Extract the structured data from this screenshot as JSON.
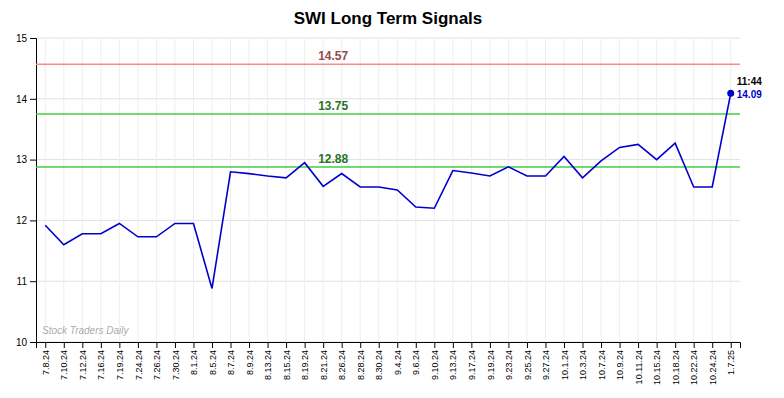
{
  "chart_data": {
    "type": "line",
    "title": "SWI Long Term Signals",
    "categories": [
      "7.8.24",
      "7.10.24",
      "7.12.24",
      "7.16.24",
      "7.19.24",
      "7.24.24",
      "7.26.24",
      "7.30.24",
      "8.1.24",
      "8.5.24",
      "8.7.24",
      "8.9.24",
      "8.13.24",
      "8.15.24",
      "8.19.24",
      "8.21.24",
      "8.26.24",
      "8.28.24",
      "8.30.24",
      "9.4.24",
      "9.6.24",
      "9.10.24",
      "9.13.24",
      "9.17.24",
      "9.19.24",
      "9.23.24",
      "9.25.24",
      "9.27.24",
      "10.1.24",
      "10.3.24",
      "10.7.24",
      "10.9.24",
      "10.11.24",
      "10.15.24",
      "10.18.24",
      "10.22.24",
      "10.24.24",
      "1.7.25"
    ],
    "values": [
      11.92,
      11.6,
      11.78,
      11.78,
      11.95,
      11.73,
      11.73,
      11.95,
      11.95,
      10.88,
      12.8,
      12.77,
      12.73,
      12.7,
      12.95,
      12.56,
      12.77,
      12.55,
      12.55,
      12.5,
      12.22,
      12.2,
      12.82,
      12.78,
      12.73,
      12.88,
      12.73,
      12.73,
      13.05,
      12.7,
      12.98,
      13.2,
      13.25,
      13.0,
      13.27,
      12.55,
      12.55,
      14.09
    ],
    "color": "#0000cc",
    "ylim": [
      10,
      15
    ],
    "yticks": [
      10,
      11,
      12,
      13,
      14,
      15
    ],
    "grid": true,
    "reference_lines": [
      {
        "value": 14.57,
        "label": "14.57",
        "color": "#ff8888"
      },
      {
        "value": 13.75,
        "label": "13.75",
        "color": "#44cc44"
      },
      {
        "value": 12.88,
        "label": "12.88",
        "color": "#44cc44"
      }
    ],
    "annotations": [
      {
        "text": "11:44",
        "x": "1.7.25",
        "y": 14.09,
        "color": "#000000"
      },
      {
        "text": "14.09",
        "x": "1.7.25",
        "y": 14.09,
        "color": "#0000cc"
      },
      {
        "text": "Stock Traders Daily"
      }
    ]
  }
}
